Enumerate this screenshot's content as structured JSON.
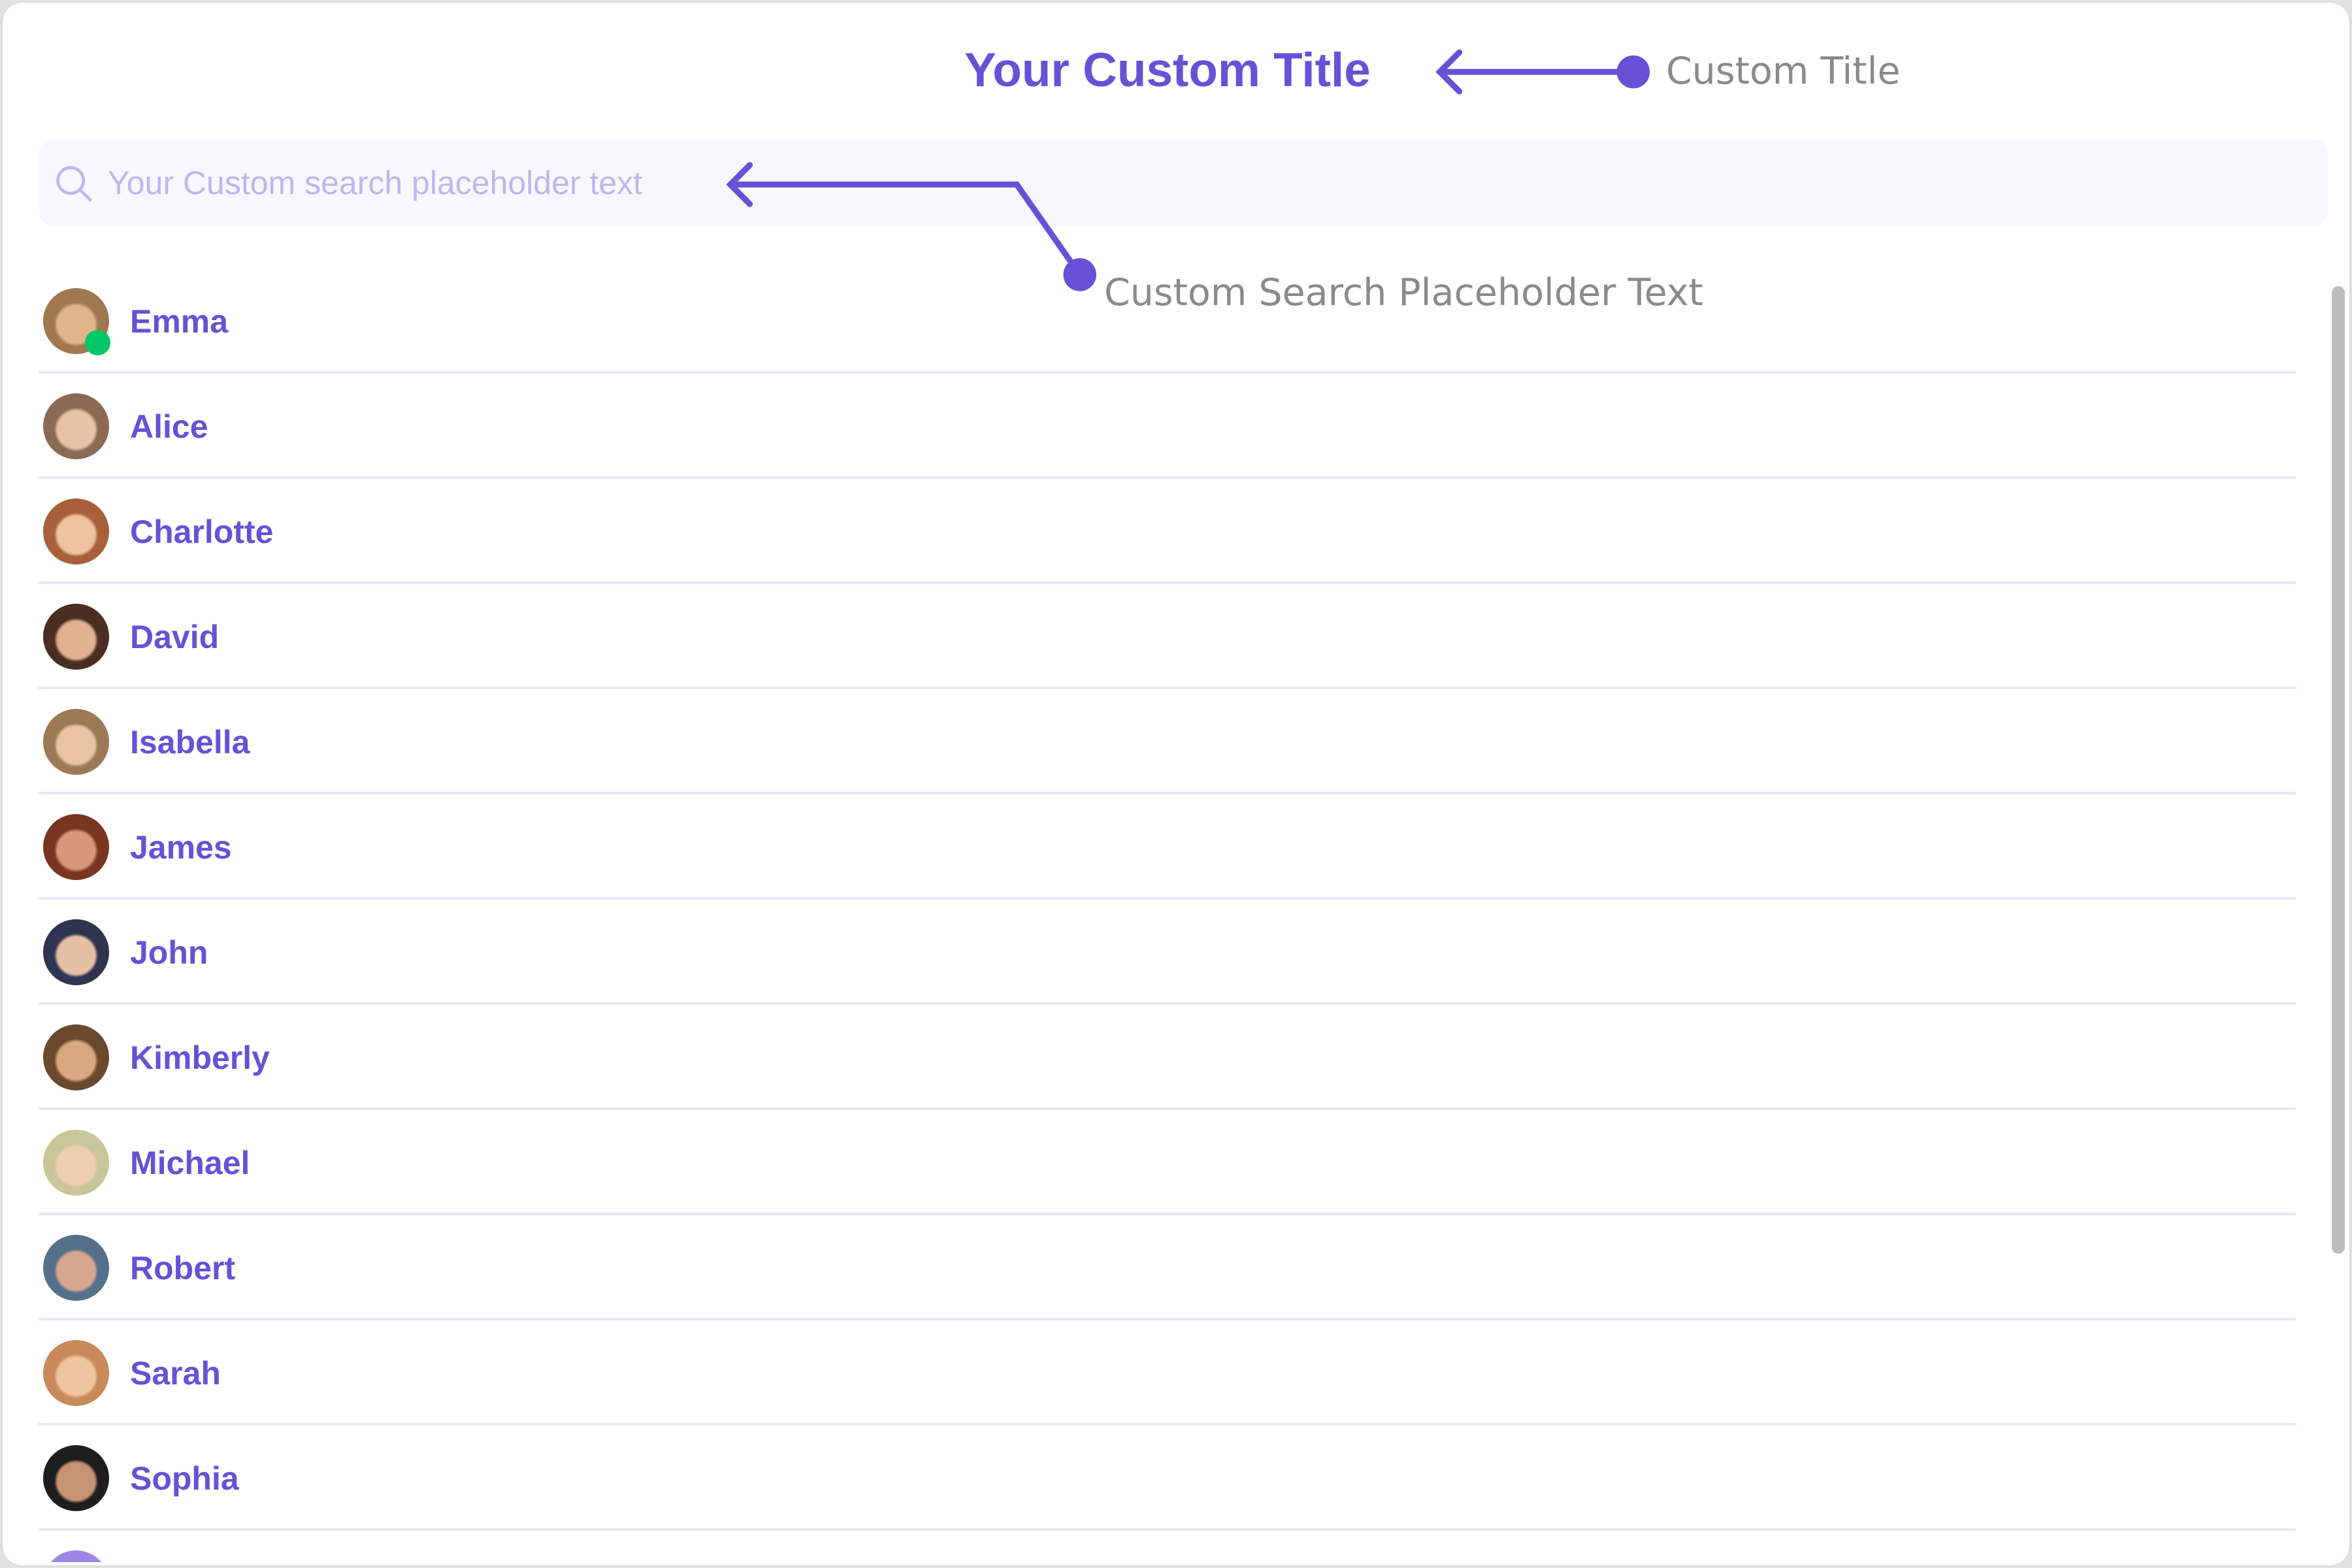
{
  "header": {
    "title": "Your Custom Title"
  },
  "search": {
    "placeholder": "Your Custom search placeholder text",
    "value": ""
  },
  "annotations": {
    "title_label": "Custom Title",
    "search_label": "Custom Search Placeholder Text"
  },
  "colors": {
    "accent": "#6851d6",
    "online": "#00c767",
    "divider": "#e8e5f8",
    "placeholder": "#c0b5ee"
  },
  "users": [
    {
      "name": "Emma",
      "online": true,
      "skin": "#e2b48c",
      "hair": "#a07850"
    },
    {
      "name": "Alice",
      "online": false,
      "skin": "#e8c2a6",
      "hair": "#8a6a55"
    },
    {
      "name": "Charlotte",
      "online": false,
      "skin": "#edc3a0",
      "hair": "#a8603a"
    },
    {
      "name": "David",
      "online": false,
      "skin": "#e0b090",
      "hair": "#4a2e22"
    },
    {
      "name": "Isabella",
      "online": false,
      "skin": "#e9c3a4",
      "hair": "#9b7a55"
    },
    {
      "name": "James",
      "online": false,
      "skin": "#d9967a",
      "hair": "#7a3520"
    },
    {
      "name": "John",
      "online": false,
      "skin": "#e5c0a5",
      "hair": "#2f3550"
    },
    {
      "name": "Kimberly",
      "online": false,
      "skin": "#d9a880",
      "hair": "#6a4a2a"
    },
    {
      "name": "Michael",
      "online": false,
      "skin": "#efcfb2",
      "hair": "#c9c69a"
    },
    {
      "name": "Robert",
      "online": false,
      "skin": "#d8a88e",
      "hair": "#55708a"
    },
    {
      "name": "Sarah",
      "online": false,
      "skin": "#efc4a0",
      "hair": "#c88a5a"
    },
    {
      "name": "Sophia",
      "online": false,
      "skin": "#c69474",
      "hair": "#1e1e1e"
    },
    {
      "name": "",
      "online": false,
      "skin": "#9a88e8",
      "hair": "#9a88e8"
    }
  ]
}
